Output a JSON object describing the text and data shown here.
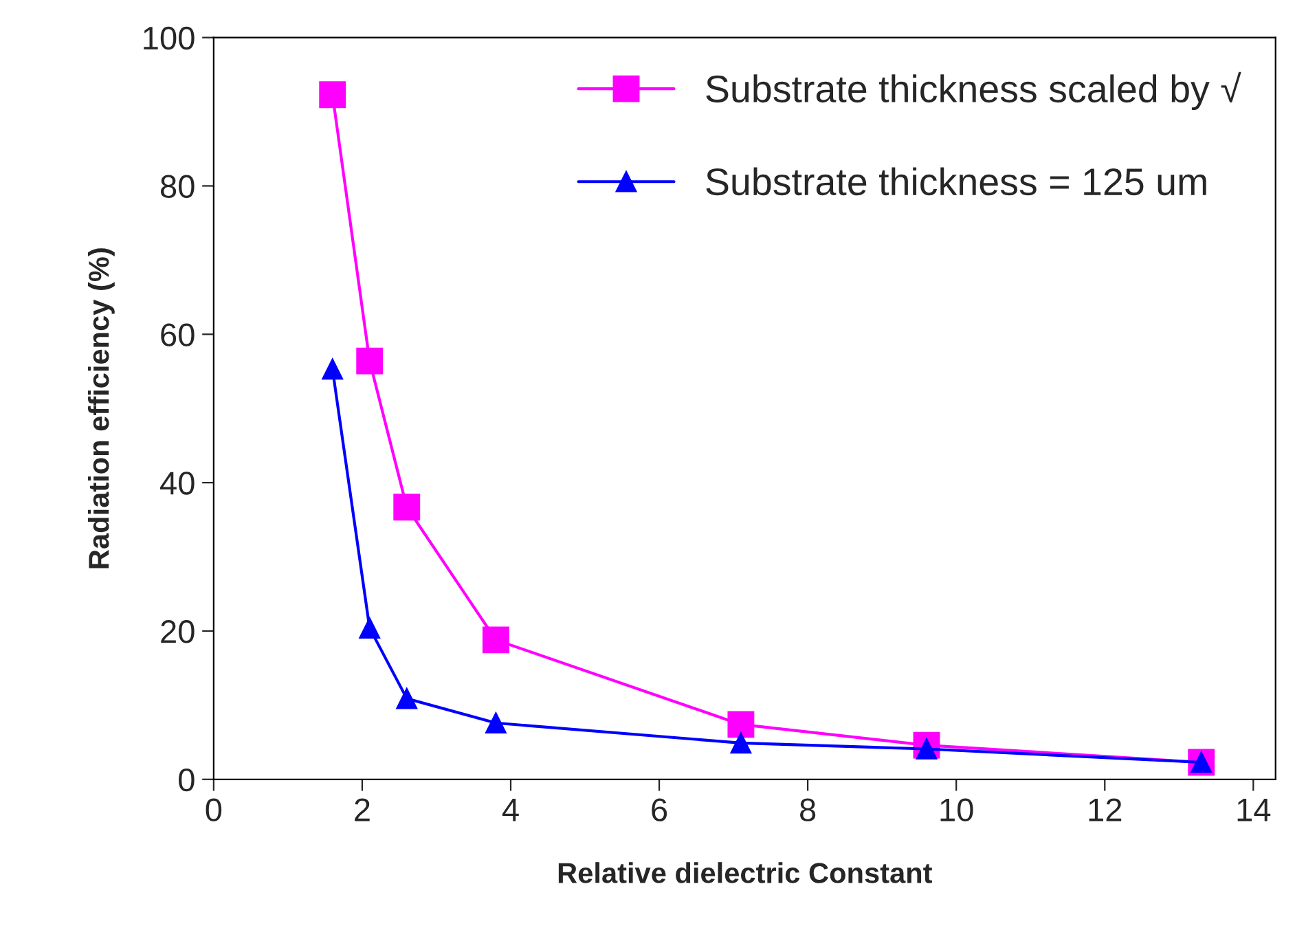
{
  "chart_data": {
    "type": "line",
    "xlabel": "Relative dielectric Constant",
    "ylabel": "Radiation efficiency (%)",
    "xlim": [
      0,
      14.3
    ],
    "xticks": [
      0,
      2,
      4,
      6,
      8,
      10,
      12,
      14
    ],
    "ylim": [
      0,
      100
    ],
    "yticks": [
      0,
      20,
      40,
      60,
      80,
      100
    ],
    "grid": false,
    "legend": "top right",
    "line_style": "solid",
    "series": [
      {
        "name": "Substrate thickness scaled by √",
        "color": "#ff00ff",
        "marker": "square",
        "x": [
          1.6,
          2.1,
          2.6,
          3.8,
          7.1,
          9.6,
          13.3
        ],
        "values": [
          92.3,
          56.4,
          36.7,
          18.8,
          7.4,
          4.6,
          2.3
        ]
      },
      {
        "name": "Substrate thickness = 125 um",
        "color": "#0000ff",
        "marker": "triangle",
        "x": [
          1.6,
          2.1,
          2.6,
          3.8,
          7.1,
          9.6,
          13.3
        ],
        "values": [
          55.3,
          20.4,
          10.9,
          7.6,
          4.9,
          4.1,
          2.3
        ]
      }
    ]
  }
}
